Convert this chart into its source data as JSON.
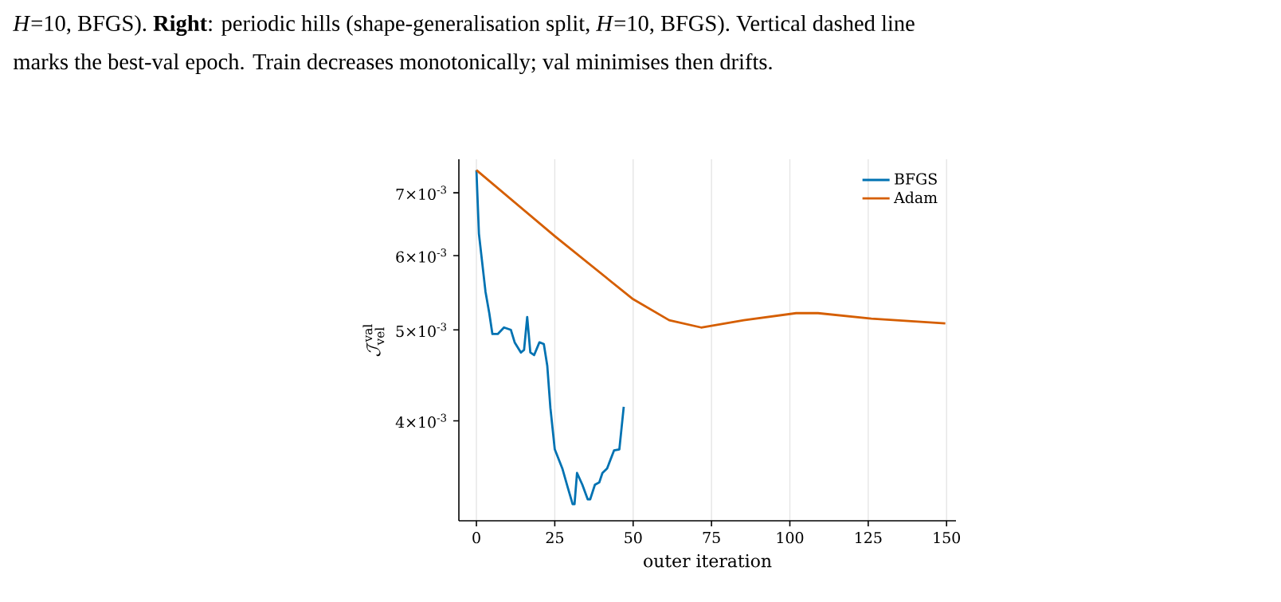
{
  "chart_data": {
    "type": "line",
    "annotations": [
      "*H*=10, BFGS). **Right**: periodic hills (shape-generalisation split, *H*=10, BFGS). Vertical dashed line",
      "marks the best-val epoch. Train decreases monotonically; val minimises then drifts."
    ],
    "xlabel": "outer iteration",
    "ylabel": "\\mathcal{J}_{\\mathrm{vel}}^{\\mathrm{val}}",
    "log": "y",
    "grid": "x",
    "legend": "top right",
    "marker": "none",
    "line_style": "solid",
    "xlim": [
      -5.6,
      153
    ],
    "xticks": [
      0,
      25,
      50,
      75,
      100,
      125,
      150
    ],
    "ylim": [
      0.00313,
      0.0076
    ],
    "yticks": [
      {
        "value": 0.004,
        "label": "4×10$^{-3}$"
      },
      {
        "value": 0.005,
        "label": "5×10$^{-3}$"
      },
      {
        "value": 0.006,
        "label": "6×10$^{-3}$"
      },
      {
        "value": 0.007,
        "label": "7×10$^{-3}$"
      }
    ],
    "series": [
      {
        "name": "BFGS",
        "color": "#0072b2",
        "x": [
          0,
          0.8,
          2.9,
          4.1,
          5.1,
          6.8,
          8.8,
          11,
          12.2,
          14.2,
          15.2,
          16.2,
          17.2,
          18.4,
          20.1,
          21.5,
          22.6,
          23.6,
          25,
          27.4,
          29.1,
          30.7,
          31.3,
          32.1,
          33.8,
          35.5,
          36.3,
          37.8,
          39.2,
          40.2,
          41.7,
          43.9,
          45.6,
          47
        ],
        "values": [
          0.0074,
          0.00633,
          0.00549,
          0.00521,
          0.00495,
          0.00495,
          0.00503,
          0.005,
          0.00485,
          0.00473,
          0.00476,
          0.00516,
          0.00473,
          0.0047,
          0.00485,
          0.00483,
          0.00458,
          0.00413,
          0.00373,
          0.00356,
          0.0034,
          0.00326,
          0.00326,
          0.00352,
          0.00342,
          0.0033,
          0.0033,
          0.00342,
          0.00344,
          0.00352,
          0.00356,
          0.00372,
          0.00373,
          0.00414
        ]
      },
      {
        "name": "Adam",
        "color": "#d55e00",
        "x": [
          0,
          25.1,
          49.7,
          61.5,
          71.7,
          85.3,
          102,
          109,
          126,
          149.6
        ],
        "values": [
          0.0074,
          0.00629,
          0.0054,
          0.00512,
          0.00503,
          0.00512,
          0.00521,
          0.00521,
          0.00514,
          0.00508
        ]
      }
    ]
  }
}
